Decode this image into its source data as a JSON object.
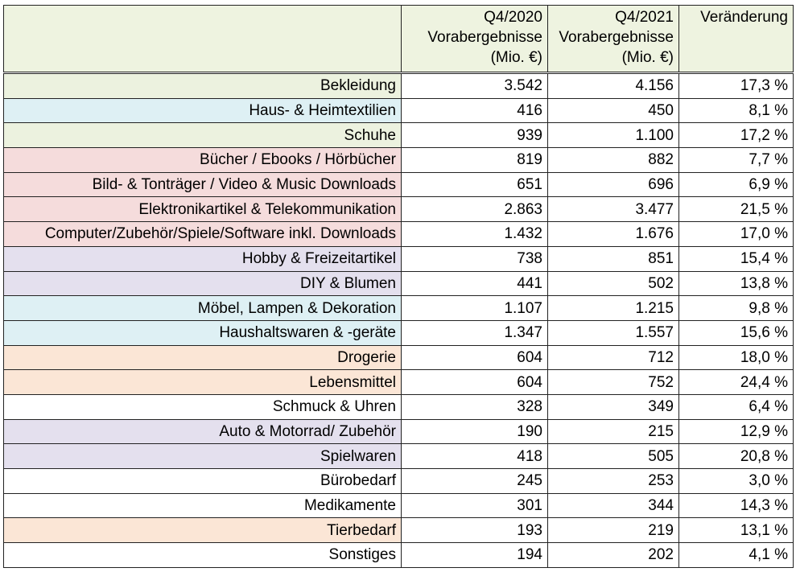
{
  "header": {
    "q2020": [
      "Q4/2020",
      "Vorabergebnisse",
      "(Mio. €)"
    ],
    "q2021": [
      "Q4/2021",
      "Vorabergebnisse",
      "(Mio. €)"
    ],
    "change": "Veränderung"
  },
  "rows": [
    {
      "label": "Bekleidung",
      "q2020": "3.542",
      "q2021": "4.156",
      "change": "17,3 %",
      "color": "green"
    },
    {
      "label": "Haus- & Heimtextilien",
      "q2020": "416",
      "q2021": "450",
      "change": "8,1 %",
      "color": "blue"
    },
    {
      "label": "Schuhe",
      "q2020": "939",
      "q2021": "1.100",
      "change": "17,2 %",
      "color": "green"
    },
    {
      "label": "Bücher / Ebooks / Hörbücher",
      "q2020": "819",
      "q2021": "882",
      "change": "7,7 %",
      "color": "red"
    },
    {
      "label": "Bild- & Tonträger / Video & Music Downloads",
      "q2020": "651",
      "q2021": "696",
      "change": "6,9 %",
      "color": "red"
    },
    {
      "label": "Elektronikartikel & Telekommunikation",
      "q2020": "2.863",
      "q2021": "3.477",
      "change": "21,5 %",
      "color": "red"
    },
    {
      "label": "Computer/Zubehör/Spiele/Software inkl. Downloads",
      "q2020": "1.432",
      "q2021": "1.676",
      "change": "17,0 %",
      "color": "red"
    },
    {
      "label": "Hobby & Freizeitartikel",
      "q2020": "738",
      "q2021": "851",
      "change": "15,4 %",
      "color": "purple"
    },
    {
      "label": "DIY & Blumen",
      "q2020": "441",
      "q2021": "502",
      "change": "13,8 %",
      "color": "purple"
    },
    {
      "label": "Möbel, Lampen & Dekoration",
      "q2020": "1.107",
      "q2021": "1.215",
      "change": "9,8 %",
      "color": "blue"
    },
    {
      "label": "Haushaltswaren & -geräte",
      "q2020": "1.347",
      "q2021": "1.557",
      "change": "15,6 %",
      "color": "blue"
    },
    {
      "label": "Drogerie",
      "q2020": "604",
      "q2021": "712",
      "change": "18,0 %",
      "color": "orange"
    },
    {
      "label": "Lebensmittel",
      "q2020": "604",
      "q2021": "752",
      "change": "24,4 %",
      "color": "orange"
    },
    {
      "label": "Schmuck & Uhren",
      "q2020": "328",
      "q2021": "349",
      "change": "6,4 %",
      "color": "white"
    },
    {
      "label": "Auto & Motorrad/ Zubehör",
      "q2020": "190",
      "q2021": "215",
      "change": "12,9 %",
      "color": "purple"
    },
    {
      "label": "Spielwaren",
      "q2020": "418",
      "q2021": "505",
      "change": "20,8 %",
      "color": "purple"
    },
    {
      "label": "Bürobedarf",
      "q2020": "245",
      "q2021": "253",
      "change": "3,0 %",
      "color": "white"
    },
    {
      "label": "Medikamente",
      "q2020": "301",
      "q2021": "344",
      "change": "14,3 %",
      "color": "white"
    },
    {
      "label": "Tierbedarf",
      "q2020": "193",
      "q2021": "219",
      "change": "13,1 %",
      "color": "orange"
    },
    {
      "label": "Sonstiges",
      "q2020": "194",
      "q2021": "202",
      "change": "4,1 %",
      "color": "white"
    }
  ]
}
